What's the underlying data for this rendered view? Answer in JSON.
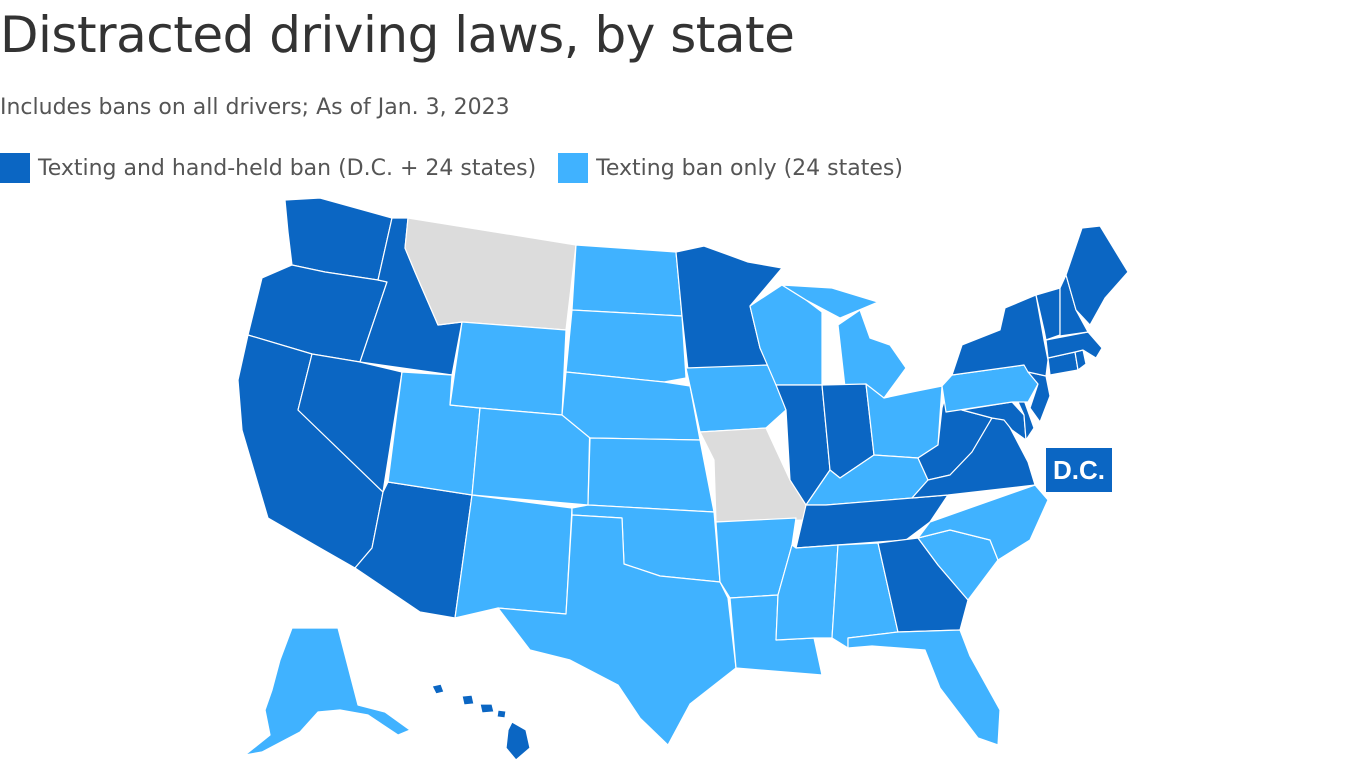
{
  "title": "Distracted driving laws, by state",
  "subtitle": "Includes bans on all drivers; As of Jan. 3, 2023",
  "legend": [
    {
      "label": "Texting and hand-held ban (D.C. + 24 states)",
      "color": "#0b66c3"
    },
    {
      "label": "Texting ban only (24 states)",
      "color": "#40b2ff"
    }
  ],
  "colors": {
    "texting_and_handheld": "#0b66c3",
    "texting_only": "#40b2ff",
    "no_ban": "#dcdcdc",
    "dc_label_bg": "#0b66c3",
    "dc_label_text": "#ffffff"
  },
  "dc_label": "D.C.",
  "states": {
    "WA": "texting_and_handheld",
    "OR": "texting_and_handheld",
    "CA": "texting_and_handheld",
    "ID": "texting_and_handheld",
    "NV": "texting_and_handheld",
    "AZ": "texting_and_handheld",
    "MN": "texting_and_handheld",
    "IL": "texting_and_handheld",
    "IN": "texting_and_handheld",
    "TN": "texting_and_handheld",
    "GA": "texting_and_handheld",
    "WV": "texting_and_handheld",
    "VA": "texting_and_handheld",
    "MD": "texting_and_handheld",
    "DE": "texting_and_handheld",
    "NJ": "texting_and_handheld",
    "NY": "texting_and_handheld",
    "CT": "texting_and_handheld",
    "RI": "texting_and_handheld",
    "MA": "texting_and_handheld",
    "VT": "texting_and_handheld",
    "NH": "texting_and_handheld",
    "ME": "texting_and_handheld",
    "HI": "texting_and_handheld",
    "DC": "texting_and_handheld",
    "MT": "no_ban",
    "MO": "no_ban",
    "ND": "texting_only",
    "SD": "texting_only",
    "NE": "texting_only",
    "KS": "texting_only",
    "OK": "texting_only",
    "TX": "texting_only",
    "WY": "texting_only",
    "CO": "texting_only",
    "UT": "texting_only",
    "NM": "texting_only",
    "IA": "texting_only",
    "WI": "texting_only",
    "MI": "texting_only",
    "OH": "texting_only",
    "KY": "texting_only",
    "PA": "texting_only",
    "AR": "texting_only",
    "LA": "texting_only",
    "MS": "texting_only",
    "AL": "texting_only",
    "FL": "texting_only",
    "SC": "texting_only",
    "NC": "texting_only",
    "AK": "texting_only"
  }
}
